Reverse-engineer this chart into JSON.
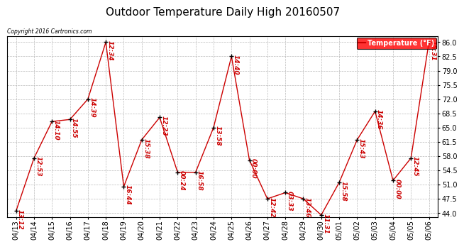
{
  "title": "Outdoor Temperature Daily High 20160507",
  "copyright": "Copyright 2016 Cartronics.com",
  "legend_label": "Temperature (°F)",
  "dates": [
    "04/13",
    "04/14",
    "04/15",
    "04/16",
    "04/17",
    "04/18",
    "04/19",
    "04/20",
    "04/21",
    "04/22",
    "04/23",
    "04/24",
    "04/25",
    "04/26",
    "04/27",
    "04/28",
    "04/29",
    "04/30",
    "05/01",
    "05/02",
    "05/03",
    "05/04",
    "05/05",
    "05/06"
  ],
  "temps": [
    44.5,
    57.5,
    66.5,
    67.0,
    72.0,
    86.0,
    50.5,
    62.0,
    67.5,
    54.0,
    54.0,
    65.0,
    82.5,
    57.0,
    47.5,
    49.0,
    47.5,
    43.5,
    51.5,
    62.0,
    69.0,
    52.0,
    57.5,
    86.0
  ],
  "times": [
    "13:12",
    "12:53",
    "14:10",
    "14:55",
    "14:39",
    "12:34",
    "16:44",
    "15:38",
    "12:23",
    "00:24",
    "16:58",
    "13:58",
    "14:40",
    "00:00",
    "12:42",
    "03:33",
    "13:46",
    "11:31",
    "15:58",
    "15:43",
    "14:36",
    "00:00",
    "12:45",
    "15:31"
  ],
  "ylim": [
    43.0,
    87.5
  ],
  "yticks": [
    44.0,
    47.5,
    51.0,
    54.5,
    58.0,
    61.5,
    65.0,
    68.5,
    72.0,
    75.5,
    79.0,
    82.5,
    86.0
  ],
  "line_color": "#cc0000",
  "marker_color": "#000000",
  "bg_color": "#ffffff",
  "grid_color": "#bbbbbb",
  "title_fontsize": 11,
  "tick_fontsize": 7,
  "label_fontsize": 6.5
}
